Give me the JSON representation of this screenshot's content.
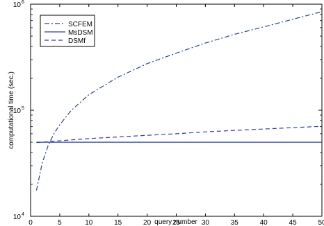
{
  "chart_data": {
    "type": "line",
    "title": "",
    "xlabel": "query number",
    "ylabel": "computational time (sec.)",
    "xlim": [
      0,
      50
    ],
    "ylim": [
      10000,
      1000000
    ],
    "yscale": "log",
    "xticks": [
      0,
      5,
      10,
      15,
      20,
      25,
      30,
      35,
      40,
      45,
      50
    ],
    "xtick_labels": [
      "0",
      "5",
      "10",
      "15",
      "20",
      "25",
      "30",
      "35",
      "40",
      "45",
      "50"
    ],
    "yticks": [
      10000,
      100000,
      1000000
    ],
    "ytick_labels": [
      {
        "base": "10",
        "exp": "4"
      },
      {
        "base": "10",
        "exp": "5"
      },
      {
        "base": "10",
        "exp": "6"
      }
    ],
    "grid": false,
    "legend_position": "top-left",
    "x": [
      1,
      2,
      3,
      4,
      5,
      7,
      10,
      15,
      20,
      25,
      30,
      35,
      40,
      45,
      50
    ],
    "series": [
      {
        "name": "SCFEM",
        "style": "dashdot",
        "color": "#2a3fa8",
        "values": [
          17500,
          32000,
          46000,
          60000,
          73000,
          100000,
          140000,
          205000,
          275000,
          345000,
          430000,
          520000,
          610000,
          720000,
          850000
        ]
      },
      {
        "name": "MsDSM",
        "style": "solid",
        "color": "#2a3fa8",
        "values": [
          50000,
          50000,
          50000,
          50000,
          50000,
          50000,
          50000,
          50000,
          50000,
          50000,
          50000,
          50000,
          50000,
          50000,
          50000
        ]
      },
      {
        "name": "DSMf",
        "style": "dashed",
        "color": "#2a3fa8",
        "values": [
          49500,
          50000,
          50500,
          51000,
          51500,
          52500,
          54000,
          56000,
          58000,
          60000,
          62500,
          64500,
          66500,
          68500,
          70500
        ]
      }
    ]
  }
}
